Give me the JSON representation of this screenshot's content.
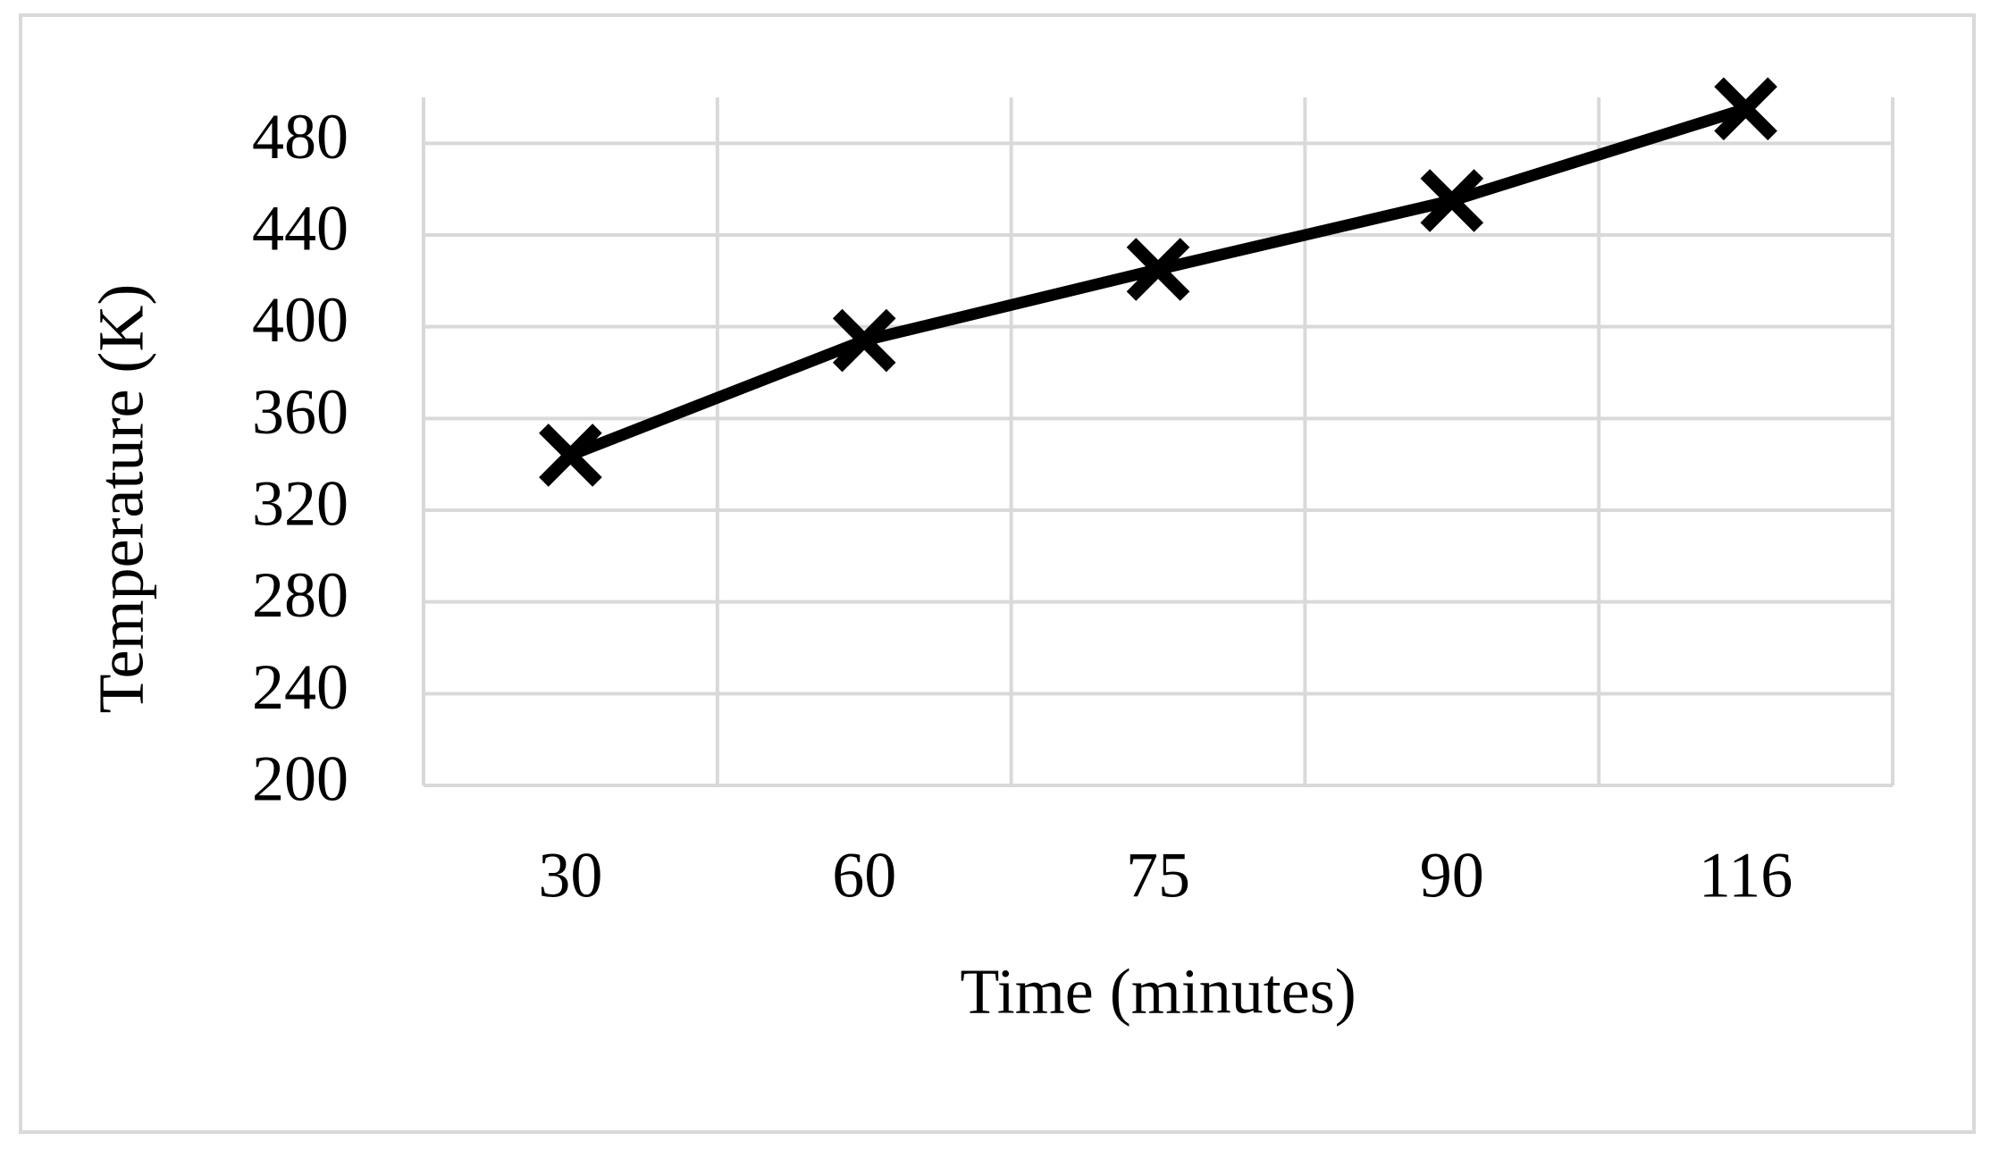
{
  "chart_data": {
    "type": "line",
    "x_label": "Time (minutes)",
    "y_label": "Temperature (K)",
    "categories": [
      "30",
      "60",
      "75",
      "90",
      "116"
    ],
    "values": [
      344,
      394,
      425,
      455,
      495
    ],
    "color": "#000000",
    "marker": "x",
    "ylim": [
      200,
      500
    ],
    "yticks": [
      200,
      240,
      280,
      320,
      360,
      400,
      440,
      480
    ],
    "grid": true
  }
}
